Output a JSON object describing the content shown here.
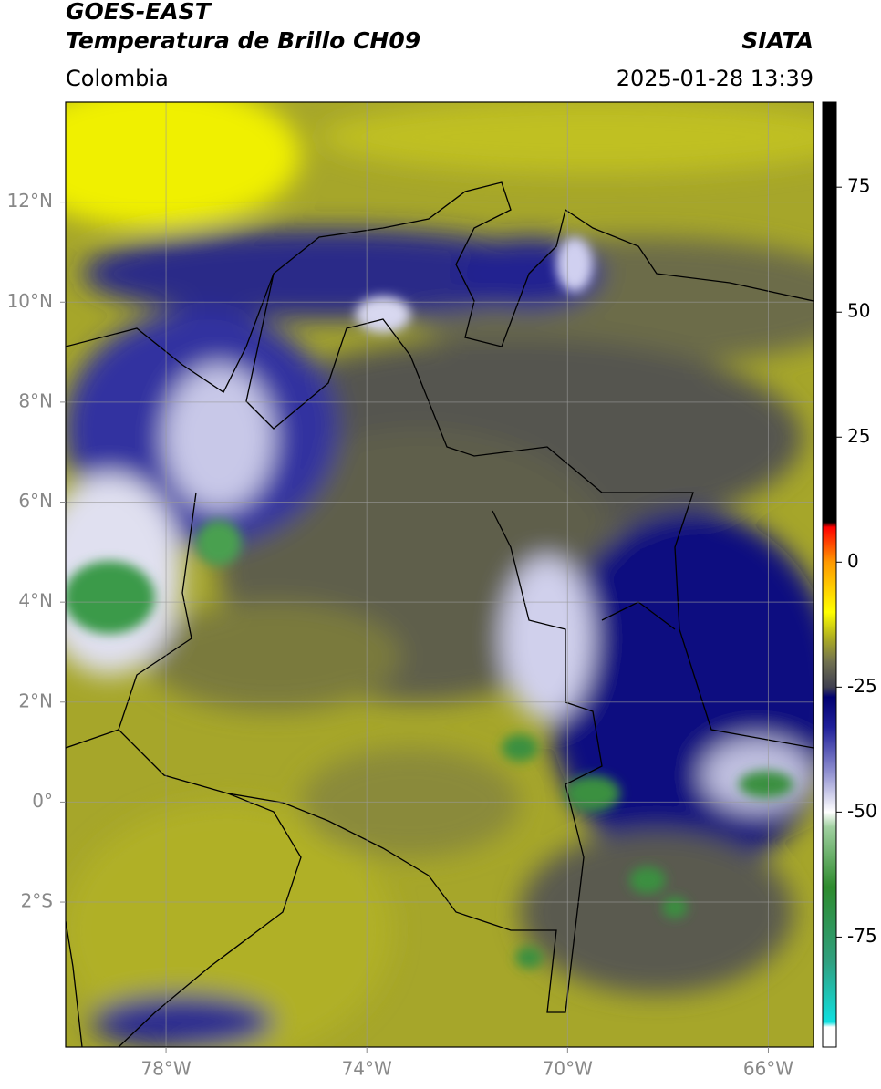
{
  "header": {
    "title": "GOES-EAST",
    "subtitle": "Temperatura de Brillo CH09",
    "source": "SIATA",
    "region": "Colombia",
    "datetime": "2025-01-28 13:39"
  },
  "map": {
    "xlim": [
      -80,
      -65.1
    ],
    "ylim": [
      -4.9,
      14
    ],
    "xticks": [
      {
        "value": -78,
        "label": "78°W"
      },
      {
        "value": -74,
        "label": "74°W"
      },
      {
        "value": -70,
        "label": "70°W"
      },
      {
        "value": -66,
        "label": "66°W"
      }
    ],
    "yticks": [
      {
        "value": -2,
        "label": "2°S"
      },
      {
        "value": 0,
        "label": "0°"
      },
      {
        "value": 2,
        "label": "2°N"
      },
      {
        "value": 4,
        "label": "4°N"
      },
      {
        "value": 6,
        "label": "6°N"
      },
      {
        "value": 8,
        "label": "8°N"
      },
      {
        "value": 10,
        "label": "10°N"
      },
      {
        "value": 12,
        "label": "12°N"
      }
    ],
    "grid": true
  },
  "colorbar": {
    "lim": [
      -97,
      92
    ],
    "ticks": [
      75,
      50,
      25,
      0,
      -25,
      -50,
      -75
    ],
    "stops": [
      {
        "value": -97,
        "color": "#ffffff"
      },
      {
        "value": -93,
        "color": "#ffffff"
      },
      {
        "value": -92,
        "color": "#10e0e0"
      },
      {
        "value": -80,
        "color": "#30a080"
      },
      {
        "value": -65,
        "color": "#2e8b2e"
      },
      {
        "value": -53,
        "color": "#a0d0a0"
      },
      {
        "value": -50,
        "color": "#ffffff"
      },
      {
        "value": -42,
        "color": "#9090d0"
      },
      {
        "value": -33,
        "color": "#20209a"
      },
      {
        "value": -27,
        "color": "#000070"
      },
      {
        "value": -25,
        "color": "#404050"
      },
      {
        "value": -20,
        "color": "#707050"
      },
      {
        "value": -15,
        "color": "#b0b020"
      },
      {
        "value": -10,
        "color": "#ffff00"
      },
      {
        "value": 0,
        "color": "#ff9900"
      },
      {
        "value": 7,
        "color": "#ff0000"
      },
      {
        "value": 8,
        "color": "#000000"
      },
      {
        "value": 92,
        "color": "#000000"
      }
    ]
  }
}
